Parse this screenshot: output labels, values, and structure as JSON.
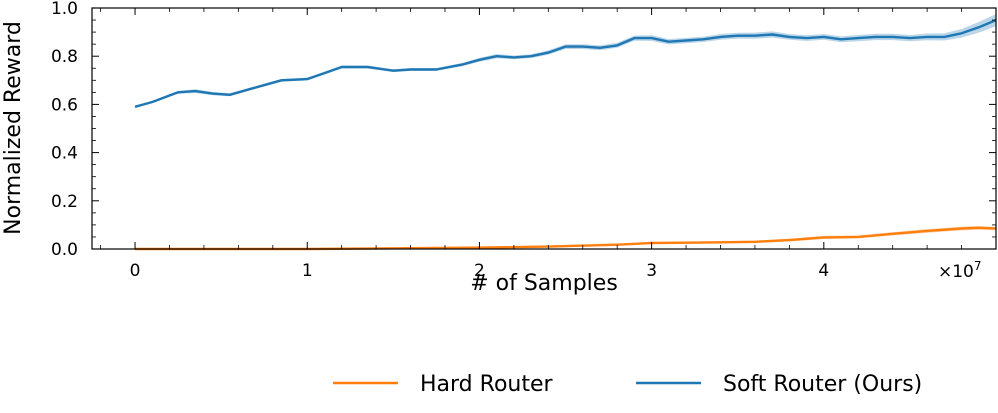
{
  "chart_data": {
    "type": "line",
    "xlabel": "# of Samples",
    "ylabel": "Normalized Reward",
    "x_scale_label": "×10",
    "x_scale_exponent": "7",
    "xlim": [
      -0.25,
      5.0
    ],
    "ylim": [
      0.0,
      1.0
    ],
    "xticks": [
      0,
      1,
      2,
      3,
      4
    ],
    "xtick_labels": [
      "0",
      "1",
      "2",
      "3",
      "4"
    ],
    "yticks": [
      0.0,
      0.2,
      0.4,
      0.6,
      0.8,
      1.0
    ],
    "ytick_labels": [
      "0.0",
      "0.2",
      "0.4",
      "0.6",
      "0.8",
      "1.0"
    ],
    "grid": false,
    "legend_position": "bottom-right, below plot",
    "series": [
      {
        "name": "Hard Router",
        "color": "#ff7f0e",
        "x": [
          0,
          0.5,
          1.0,
          1.5,
          2.0,
          2.4,
          2.8,
          3.0,
          3.2,
          3.4,
          3.6,
          3.8,
          4.0,
          4.2,
          4.4,
          4.6,
          4.8,
          4.9,
          5.0
        ],
        "y": [
          0.0,
          0.0,
          0.0,
          0.003,
          0.006,
          0.01,
          0.018,
          0.025,
          0.026,
          0.028,
          0.03,
          0.037,
          0.048,
          0.05,
          0.063,
          0.075,
          0.085,
          0.088,
          0.085
        ],
        "band": [
          0.0,
          0.0,
          0.0,
          0.002,
          0.003,
          0.004,
          0.004,
          0.004,
          0.004,
          0.004,
          0.005,
          0.006,
          0.007,
          0.006,
          0.007,
          0.008,
          0.008,
          0.008,
          0.006
        ]
      },
      {
        "name": "Soft Router (Ours)",
        "color": "#1f77b4",
        "x": [
          0,
          0.1,
          0.25,
          0.35,
          0.45,
          0.55,
          0.7,
          0.85,
          1.0,
          1.1,
          1.2,
          1.35,
          1.5,
          1.6,
          1.75,
          1.9,
          2.0,
          2.1,
          2.2,
          2.3,
          2.4,
          2.5,
          2.6,
          2.7,
          2.8,
          2.9,
          3.0,
          3.1,
          3.2,
          3.3,
          3.4,
          3.5,
          3.6,
          3.7,
          3.8,
          3.9,
          4.0,
          4.1,
          4.2,
          4.3,
          4.4,
          4.5,
          4.6,
          4.7,
          4.8,
          4.9,
          5.0
        ],
        "y": [
          0.59,
          0.61,
          0.65,
          0.655,
          0.645,
          0.64,
          0.67,
          0.7,
          0.705,
          0.73,
          0.755,
          0.755,
          0.74,
          0.745,
          0.745,
          0.765,
          0.785,
          0.8,
          0.795,
          0.8,
          0.815,
          0.84,
          0.84,
          0.835,
          0.845,
          0.875,
          0.875,
          0.86,
          0.865,
          0.87,
          0.88,
          0.885,
          0.885,
          0.89,
          0.88,
          0.875,
          0.88,
          0.87,
          0.875,
          0.88,
          0.88,
          0.875,
          0.88,
          0.88,
          0.895,
          0.92,
          0.95
        ],
        "band": [
          0.003,
          0.004,
          0.006,
          0.008,
          0.007,
          0.006,
          0.006,
          0.006,
          0.006,
          0.006,
          0.006,
          0.006,
          0.006,
          0.006,
          0.006,
          0.007,
          0.008,
          0.009,
          0.008,
          0.008,
          0.009,
          0.01,
          0.01,
          0.01,
          0.01,
          0.011,
          0.012,
          0.011,
          0.011,
          0.011,
          0.012,
          0.012,
          0.013,
          0.013,
          0.012,
          0.012,
          0.012,
          0.012,
          0.013,
          0.013,
          0.013,
          0.013,
          0.014,
          0.015,
          0.018,
          0.022,
          0.025
        ]
      }
    ]
  }
}
